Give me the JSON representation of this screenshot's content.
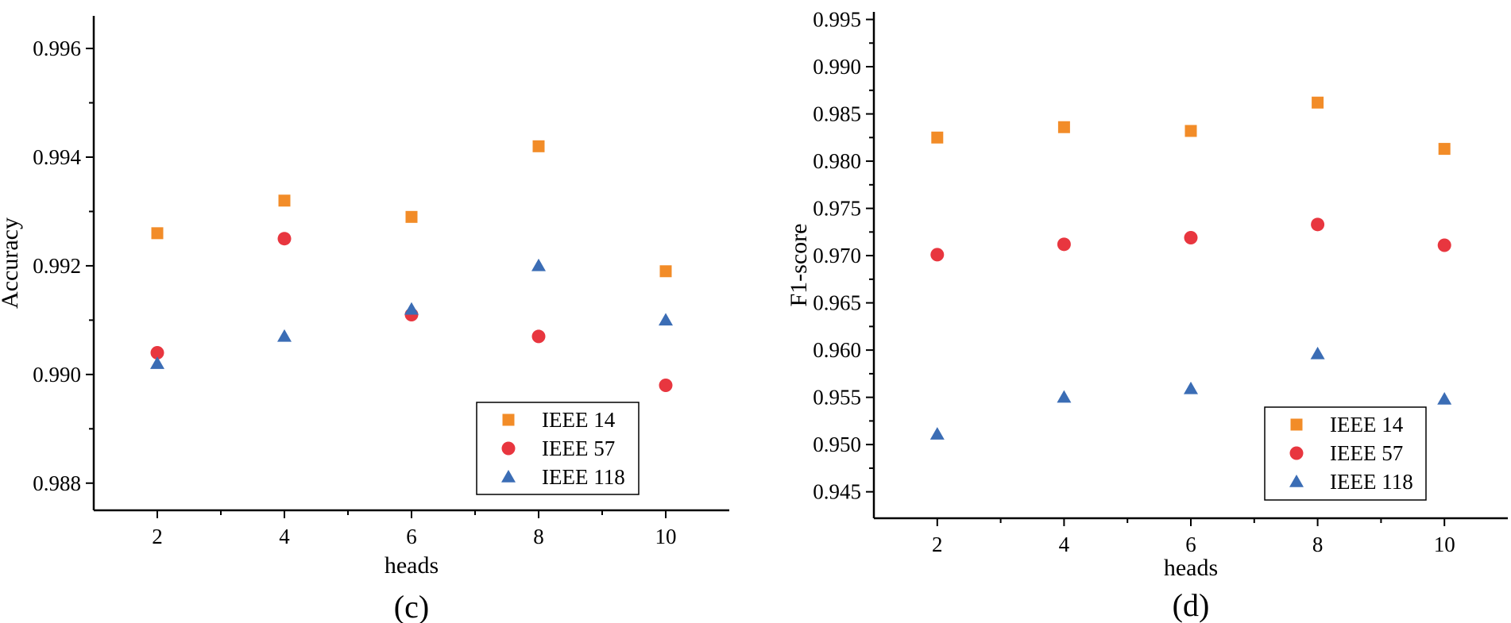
{
  "chart_data": [
    {
      "type": "scatter",
      "panel_label": "(c)",
      "xlabel": "heads",
      "ylabel": "Accuracy",
      "x": [
        2,
        4,
        6,
        8,
        10
      ],
      "xticks": [
        "2",
        "4",
        "6",
        "8",
        "10"
      ],
      "ylim": [
        0.9875,
        0.9966
      ],
      "yticks": [
        "0.988",
        "0.990",
        "0.992",
        "0.994",
        "0.996"
      ],
      "legend_position": "bottom-right",
      "series": [
        {
          "name": "IEEE 14",
          "marker": "square",
          "color": "#F28C28",
          "values": [
            0.9926,
            0.9932,
            0.9929,
            0.9942,
            0.9919
          ]
        },
        {
          "name": "IEEE 57",
          "marker": "circle",
          "color": "#E8363F",
          "values": [
            0.9904,
            0.9925,
            0.9911,
            0.9907,
            0.9898
          ]
        },
        {
          "name": "IEEE 118",
          "marker": "triangle",
          "color": "#3B6DB5",
          "values": [
            0.9902,
            0.9907,
            0.9912,
            0.992,
            0.991
          ]
        }
      ]
    },
    {
      "type": "scatter",
      "panel_label": "(d)",
      "xlabel": "heads",
      "ylabel": "F1-score",
      "x": [
        2,
        4,
        6,
        8,
        10
      ],
      "xticks": [
        "2",
        "4",
        "6",
        "8",
        "10"
      ],
      "ylim": [
        0.9422,
        0.9958
      ],
      "yticks": [
        "0.945",
        "0.950",
        "0.955",
        "0.960",
        "0.965",
        "0.970",
        "0.975",
        "0.980",
        "0.985",
        "0.990",
        "0.995"
      ],
      "legend_position": "bottom-right",
      "series": [
        {
          "name": "IEEE 14",
          "marker": "square",
          "color": "#F28C28",
          "values": [
            0.9825,
            0.9836,
            0.9832,
            0.9862,
            0.9813
          ]
        },
        {
          "name": "IEEE 57",
          "marker": "circle",
          "color": "#E8363F",
          "values": [
            0.9701,
            0.9712,
            0.9719,
            0.9733,
            0.9711
          ]
        },
        {
          "name": "IEEE 118",
          "marker": "triangle",
          "color": "#3B6DB5",
          "values": [
            0.9511,
            0.955,
            0.9559,
            0.9596,
            0.9548
          ]
        }
      ]
    }
  ]
}
